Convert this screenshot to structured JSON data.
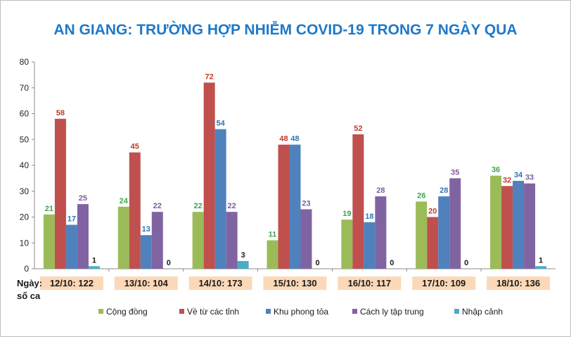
{
  "chart_data": {
    "type": "bar",
    "title": "AN GIANG: TRƯỜNG HỢP NHIỄM COVID-19 TRONG 7 NGÀY QUA",
    "x_side_label": [
      "Ngày:",
      "số ca"
    ],
    "categories": [
      "12/10: 122",
      "13/10: 104",
      "14/10: 173",
      "15/10: 130",
      "16/10: 117",
      "17/10: 109",
      "18/10: 136"
    ],
    "ylim": [
      0,
      80
    ],
    "yticks": [
      0,
      10,
      20,
      30,
      40,
      50,
      60,
      70,
      80
    ],
    "grid": false,
    "legend_position": "bottom",
    "series": [
      {
        "name": "Cộng đồng",
        "color": "#9bbb59",
        "label_color": "#3aa64a",
        "values": [
          21,
          24,
          22,
          11,
          19,
          26,
          36
        ]
      },
      {
        "name": "Về từ các tỉnh",
        "color": "#c0504d",
        "label_color": "#c0392b",
        "values": [
          58,
          45,
          72,
          48,
          52,
          20,
          32
        ]
      },
      {
        "name": "Khu phong tỏa",
        "color": "#4f81bd",
        "label_color": "#2e75b6",
        "values": [
          17,
          13,
          54,
          48,
          18,
          28,
          34
        ]
      },
      {
        "name": "Cách ly tập trung",
        "color": "#8064a2",
        "label_color": "#7d5aa6",
        "values": [
          25,
          22,
          22,
          23,
          28,
          35,
          33
        ]
      },
      {
        "name": "Nhập cảnh",
        "color": "#4bacc6",
        "label_color": "#1a1a1a",
        "values": [
          1,
          0,
          3,
          0,
          0,
          0,
          1
        ]
      }
    ]
  }
}
